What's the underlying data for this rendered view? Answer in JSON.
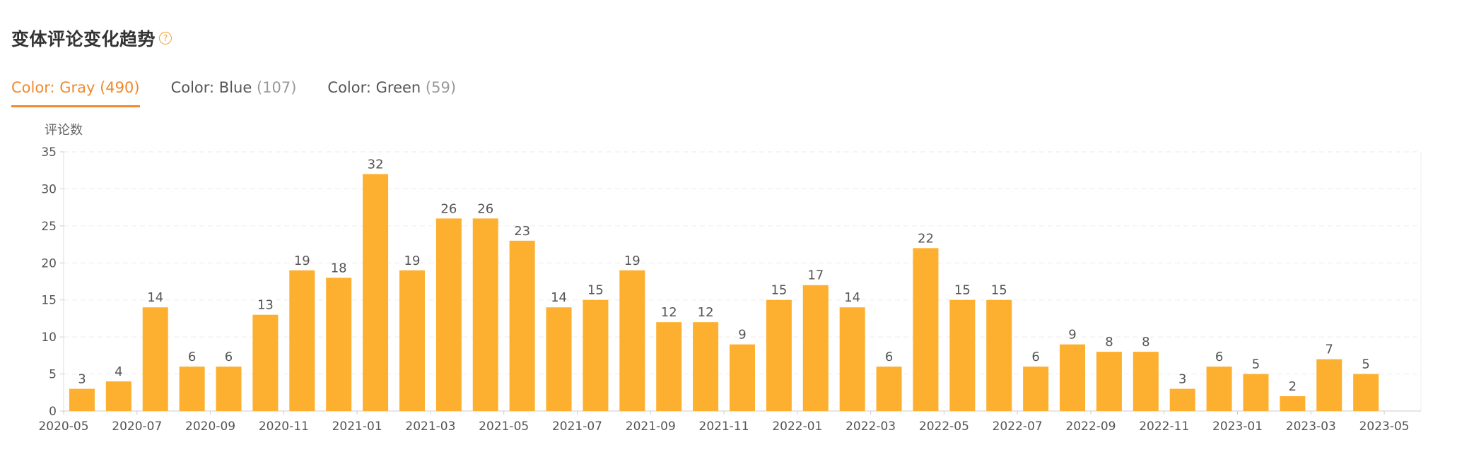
{
  "header": {
    "title": "变体评论变化趋势",
    "help_icon": "question-circle-icon",
    "accent_color": "#f08a2c"
  },
  "tabs": [
    {
      "label": "Color: Gray",
      "count": "(490)",
      "active": true
    },
    {
      "label": "Color: Blue",
      "count": "(107)",
      "active": false
    },
    {
      "label": "Color: Green",
      "count": "(59)",
      "active": false
    }
  ],
  "chart_data": {
    "type": "bar",
    "title": "",
    "ylabel": "评论数",
    "xlabel": "",
    "ylim": [
      0,
      35
    ],
    "yticks": [
      0,
      5,
      10,
      15,
      20,
      25,
      30,
      35
    ],
    "xlim": [
      "2020-05",
      "2023-05"
    ],
    "xtick_labels": [
      "2020-05",
      "2020-07",
      "2020-09",
      "2020-11",
      "2021-01",
      "2021-03",
      "2021-05",
      "2021-07",
      "2021-09",
      "2021-11",
      "2022-01",
      "2022-03",
      "2022-05",
      "2022-07",
      "2022-09",
      "2022-11",
      "2023-01",
      "2023-03",
      "2023-05"
    ],
    "categories": [
      "2020-05",
      "2020-06",
      "2020-07",
      "2020-08",
      "2020-09",
      "2020-10",
      "2020-11",
      "2020-12",
      "2021-01",
      "2021-02",
      "2021-03",
      "2021-04",
      "2021-05",
      "2021-06",
      "2021-07",
      "2021-08",
      "2021-09",
      "2021-10",
      "2021-11",
      "2021-12",
      "2022-01",
      "2022-02",
      "2022-03",
      "2022-04",
      "2022-05",
      "2022-06",
      "2022-07",
      "2022-08",
      "2022-09",
      "2022-10",
      "2022-11",
      "2022-12",
      "2023-01",
      "2023-02",
      "2023-03",
      "2023-04"
    ],
    "values": [
      3,
      4,
      14,
      6,
      6,
      13,
      19,
      18,
      32,
      19,
      26,
      26,
      23,
      14,
      15,
      19,
      12,
      12,
      9,
      15,
      17,
      14,
      6,
      22,
      15,
      15,
      6,
      9,
      8,
      8,
      3,
      6,
      5,
      2,
      7,
      5
    ],
    "bar_color": "#fdb02f",
    "grid": true,
    "data_labels": true
  }
}
